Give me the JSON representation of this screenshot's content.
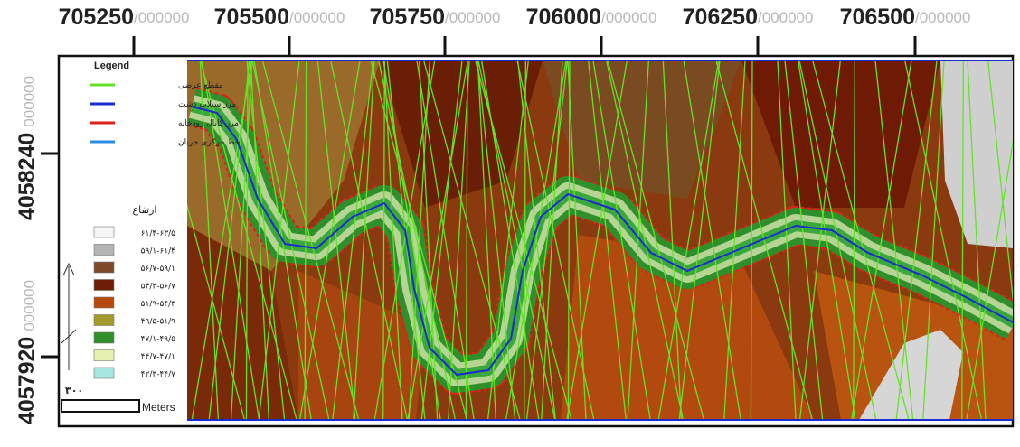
{
  "x_labels": [
    {
      "main": "705250",
      "suffix": "/000000"
    },
    {
      "main": "705500",
      "suffix": "/000000"
    },
    {
      "main": "705750",
      "suffix": "/000000"
    },
    {
      "main": "706000",
      "suffix": "/000000"
    },
    {
      "main": "706250",
      "suffix": "/000000"
    },
    {
      "main": "706500",
      "suffix": "/000000"
    }
  ],
  "y_labels": [
    {
      "main": "4058240",
      "suffix": "000000"
    },
    {
      "main": "4057920",
      "suffix": "000000"
    }
  ],
  "legend": {
    "title": "Legend",
    "items": [
      {
        "label": "مقطع عرضی",
        "color": "#66e12a"
      },
      {
        "label": "مرز سیلاب دشت",
        "color": "#1a2bd0"
      },
      {
        "label": "مرز کانال رودخانه",
        "color": "#e0201a"
      },
      {
        "label": "خط مرکزی جریان",
        "color": "#2a8ae6"
      }
    ],
    "elevation_title": "ارتفاع",
    "classes": [
      {
        "label": "۶۱/۴-۶۳/۵",
        "color": "#f4f6f4"
      },
      {
        "label": "۵۹/۱-۶۱/۴",
        "color": "#b4b4b4"
      },
      {
        "label": "۵۶/۷-۵۹/۱",
        "color": "#7e4a2c"
      },
      {
        "label": "۵۴/۳-۵۶/۷",
        "color": "#6e1e06"
      },
      {
        "label": "۵۱/۹-۵۴/۳",
        "color": "#b84a0e"
      },
      {
        "label": "۴۹/۵-۵۱/۹",
        "color": "#a39a2a"
      },
      {
        "label": "۴۷/۱-۴۹/۵",
        "color": "#2f8f2a"
      },
      {
        "label": "۴۴/۷-۴۷/۱",
        "color": "#e6f0b0"
      },
      {
        "label": "۴۲/۳-۴۴/۷",
        "color": "#a8e6e0"
      }
    ],
    "scale_value": "۳۰۰",
    "scale_unit": "Meters"
  }
}
